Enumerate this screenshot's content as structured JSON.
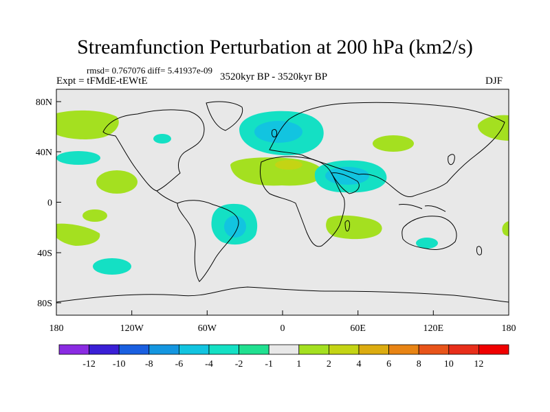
{
  "title": "Streamfunction Perturbation at 200 hPa (km2/s)",
  "stats": "rmsd= 0.767076 diff= 5.41937e-09",
  "experiment": "Expt = tFMdE-tEWtE",
  "period": "3520kyr BP - 3520kyr BP",
  "season": "DJF",
  "map": {
    "lon_labels": [
      "180",
      "120W",
      "60W",
      "0",
      "60E",
      "120E",
      "180"
    ],
    "lat_labels": [
      "80N",
      "40N",
      "0",
      "40S",
      "80S"
    ],
    "land_background": "#e8e8e8"
  },
  "colorbar": {
    "labels": [
      "-12",
      "-10",
      "-8",
      "-6",
      "-4",
      "-2",
      "-1",
      "1",
      "2",
      "4",
      "6",
      "8",
      "10",
      "12"
    ],
    "colors": [
      "#8a2be2",
      "#3a1fd6",
      "#1a5fe0",
      "#1496e0",
      "#12c4e0",
      "#14e0c4",
      "#20e090",
      "#e8e8e8",
      "#a4e020",
      "#c4d414",
      "#dcac10",
      "#e88414",
      "#e8541a",
      "#e82e1a",
      "#f00000"
    ]
  },
  "anomalies": [
    {
      "region": "north-atlantic-europe",
      "color": "#14e0c4"
    },
    {
      "region": "north-atlantic-core",
      "color": "#12c4e0"
    },
    {
      "region": "middle-east-africa",
      "color": "#14e0c4"
    },
    {
      "region": "arabia-core",
      "color": "#12c4e0"
    },
    {
      "region": "south-america-atlantic",
      "color": "#14e0c4"
    },
    {
      "region": "south-atlantic-core",
      "color": "#12c4e0"
    },
    {
      "region": "north-pacific",
      "color": "#a4e020"
    },
    {
      "region": "north-africa",
      "color": "#a4e020"
    },
    {
      "region": "sahara-core",
      "color": "#c4d414"
    },
    {
      "region": "east-africa-south",
      "color": "#a4e020"
    },
    {
      "region": "central-asia",
      "color": "#a4e020"
    },
    {
      "region": "east-pacific-north",
      "color": "#a4e020"
    },
    {
      "region": "south-pacific",
      "color": "#a4e020"
    }
  ]
}
